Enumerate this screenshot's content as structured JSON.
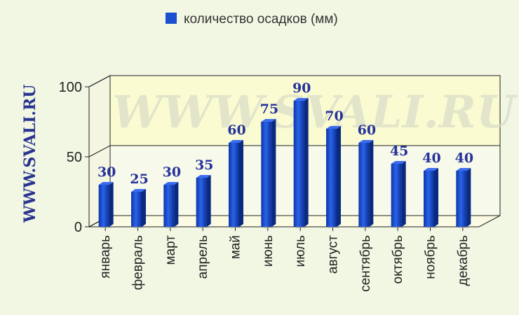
{
  "watermark": "WWW.SVALI.RU",
  "chart_data": {
    "type": "bar",
    "title": "",
    "xlabel": "",
    "ylabel": "",
    "legend": {
      "position": "top",
      "entries": [
        "количество осадков (мм)"
      ]
    },
    "ylim": [
      0,
      100
    ],
    "yticks": [
      0,
      50,
      100
    ],
    "categories": [
      "январь",
      "февраль",
      "март",
      "апрель",
      "май",
      "июнь",
      "июль",
      "август",
      "сентябрь",
      "октябрь",
      "ноябрь",
      "декабрь"
    ],
    "series": [
      {
        "name": "количество осадков (мм)",
        "color": "#1a4fcf",
        "values": [
          30,
          25,
          30,
          35,
          60,
          75,
          90,
          70,
          60,
          45,
          40,
          40
        ]
      }
    ],
    "grid": false,
    "background_band": {
      "from": 50,
      "to": 100,
      "color": "#fbfbd2"
    }
  }
}
